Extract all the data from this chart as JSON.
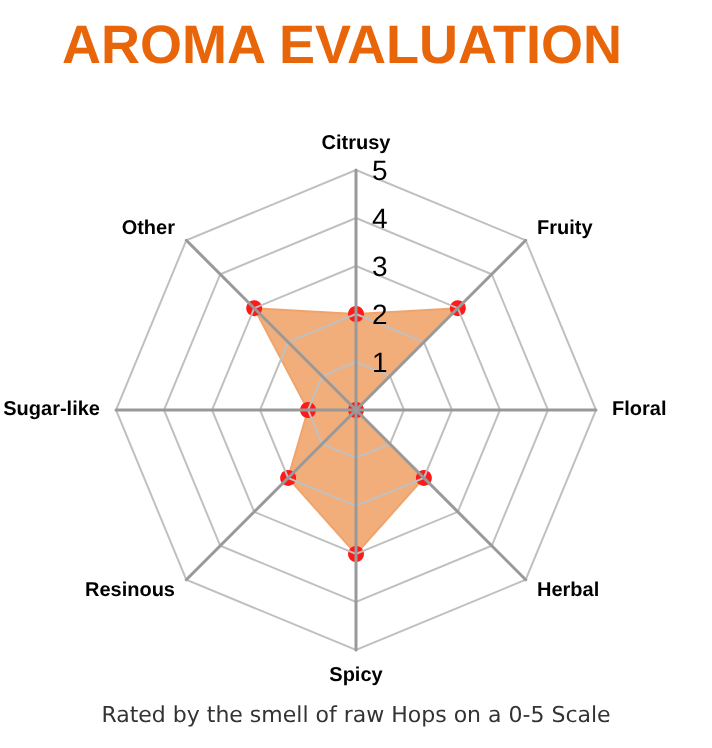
{
  "chart_data": {
    "type": "radar",
    "title": "AROMA EVALUATION",
    "categories": [
      "Citrusy",
      "Fruity",
      "Floral",
      "Herbal",
      "Spicy",
      "Resinous",
      "Sugar-like",
      "Other"
    ],
    "series": [
      {
        "color": "#f0a46c",
        "values": [
          2,
          3,
          0,
          2,
          3,
          2,
          1,
          3
        ]
      }
    ],
    "ylim": [
      0,
      5
    ],
    "yticks": [
      1,
      2,
      3,
      4,
      5
    ],
    "marker": "circle",
    "annotations": [
      "Rated by the smell of raw Hops on a 0-5 Scale"
    ]
  }
}
